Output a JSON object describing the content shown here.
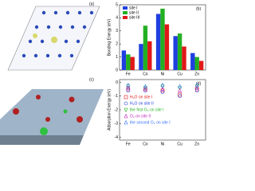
{
  "images": [
    {
      "label": "(a)"
    },
    {
      "label": "(c)"
    }
  ],
  "chart_data": [
    {
      "type": "bar",
      "label": "(b)",
      "y_label": "Bonding Energy (eV)",
      "categories": [
        "Fe",
        "Co",
        "Ni",
        "Cu",
        "Zn"
      ],
      "series": [
        {
          "name": "site I",
          "color": "#1f3fe0",
          "values": [
            1.5,
            2.0,
            4.3,
            2.6,
            1.3
          ]
        },
        {
          "name": "site II",
          "color": "#22b022",
          "values": [
            1.2,
            3.4,
            4.7,
            2.8,
            1.0
          ]
        },
        {
          "name": "site III",
          "color": "#e01818",
          "values": [
            1.0,
            2.2,
            3.5,
            1.8,
            0.7
          ]
        }
      ],
      "ylim": [
        0,
        5
      ],
      "yticks": [
        0,
        1,
        2,
        3,
        4,
        5
      ]
    },
    {
      "type": "scatter",
      "label": "(d)",
      "y_label": "Adsorption Energy (eV)",
      "categories": [
        "Fe",
        "Co",
        "Ni",
        "Cu",
        "Zn"
      ],
      "series": [
        {
          "name": "H₂O on site I",
          "color": "#e01818",
          "marker": "square",
          "values": [
            -0.5,
            -0.5,
            -0.6,
            -0.9,
            -0.5
          ]
        },
        {
          "name": "H₂O on site II",
          "color": "#1f3fe0",
          "marker": "circle",
          "values": [
            -0.6,
            -0.6,
            -0.7,
            -1.0,
            -0.6
          ]
        },
        {
          "name": "the first O₂ on site I",
          "color": "#22b022",
          "marker": "triangle-down",
          "values": [
            -0.3,
            -0.4,
            -0.3,
            -0.4,
            -0.3
          ]
        },
        {
          "name": "O₂ on site II",
          "color": "#c020c0",
          "marker": "triangle-up",
          "values": [
            -0.4,
            -0.5,
            -0.5,
            -0.6,
            -0.4
          ]
        },
        {
          "name": "the second O₂ on site I",
          "color": "#3070ff",
          "marker": "triangle-up",
          "values": [
            -0.2,
            -0.3,
            -0.2,
            -0.3,
            -0.2
          ]
        }
      ],
      "ylim": [
        -4.2,
        0.2
      ],
      "yticks": [
        0,
        -1,
        -2,
        -3,
        -4
      ]
    }
  ]
}
